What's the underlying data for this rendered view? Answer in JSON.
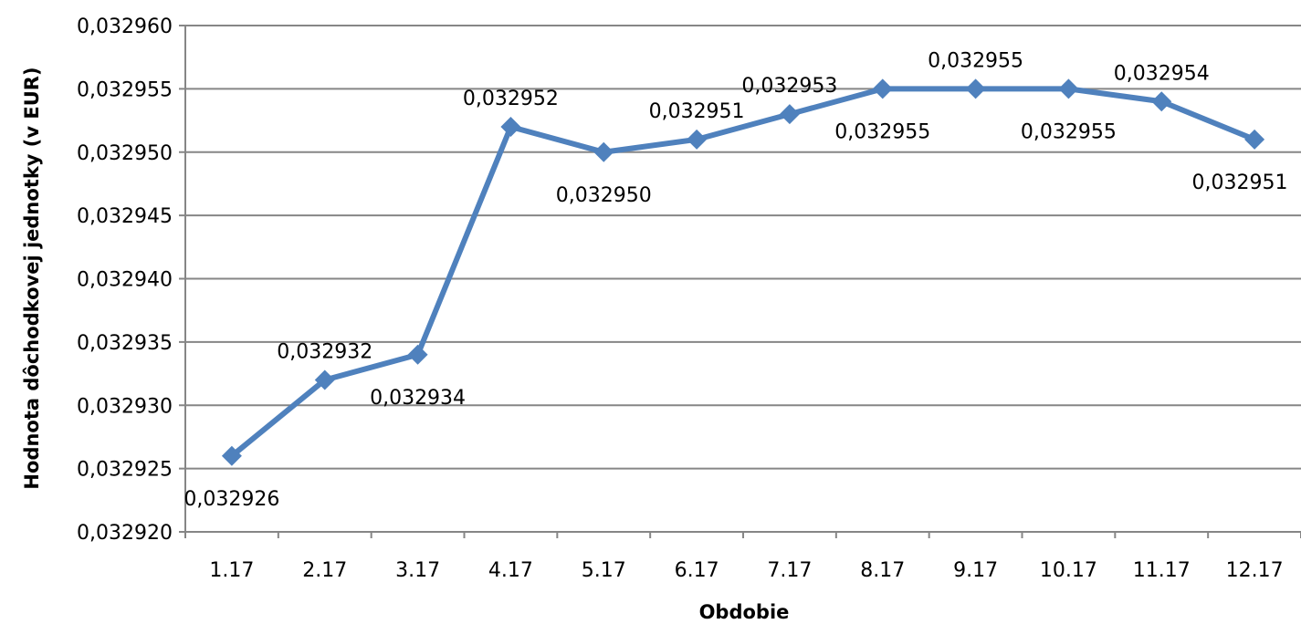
{
  "chart_data": {
    "type": "line",
    "xlabel": "Obdobie",
    "ylabel": "Hodnota dôchodkovej jednotky (v EUR)",
    "categories": [
      "1.17",
      "2.17",
      "3.17",
      "4.17",
      "5.17",
      "6.17",
      "7.17",
      "8.17",
      "9.17",
      "10.17",
      "11.17",
      "12.17"
    ],
    "series": [
      {
        "values": [
          0.032926,
          0.032932,
          0.032934,
          0.032952,
          0.03295,
          0.032951,
          0.032953,
          0.032955,
          0.032955,
          0.032955,
          0.032954,
          0.032951
        ],
        "labels": [
          "0,032926",
          "0,032932",
          "0,032934",
          "0,032952",
          "0,032950",
          "0,032951",
          "0,032953",
          "0,032955",
          "0,032955",
          "0,032955",
          "0,032954",
          "0,032951"
        ],
        "label_placement": [
          "below",
          "above",
          "below",
          "above",
          "below",
          "above",
          "above",
          "below",
          "above",
          "below",
          "above",
          "below"
        ]
      }
    ],
    "ylim": [
      0.03292,
      0.03296
    ],
    "yticks": [
      0.03292,
      0.032925,
      0.03293,
      0.032935,
      0.03294,
      0.032945,
      0.03295,
      0.032955,
      0.03296
    ],
    "ytick_labels": [
      "0,032920",
      "0,032925",
      "0,032930",
      "0,032935",
      "0,032940",
      "0,032945",
      "0,032950",
      "0,032955",
      "0,032960"
    ],
    "grid": true,
    "legend": "none",
    "colors": {
      "line": "#4F81BD",
      "grid": "#868686",
      "axis": "#868686",
      "text": "#000000"
    },
    "marker": "diamond"
  }
}
